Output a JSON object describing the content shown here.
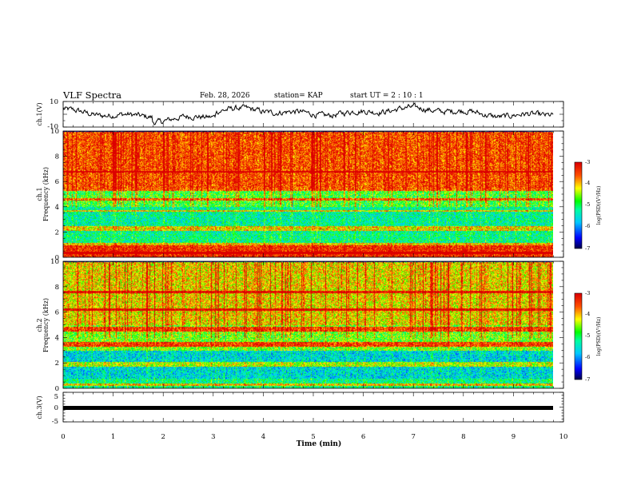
{
  "header": {
    "title": "VLF Spectra",
    "date": "Feb. 28, 2026",
    "station": "station= KAP",
    "start": "start  UT =   2 : 10 : 1"
  },
  "chart_data": [
    {
      "type": "line",
      "name": "ch1-waveform",
      "ylabel": "ch.1(V)",
      "ylim": [
        -10,
        10
      ],
      "y_ticks": [
        "10",
        "-10"
      ],
      "x_range": [
        0,
        10
      ],
      "data_extent": [
        0,
        9.8
      ],
      "description_values": "noisy envelope, mostly between -3 and 5 V"
    },
    {
      "type": "heatmap",
      "name": "ch1-spectrogram",
      "ylabel_line1": "ch.1",
      "ylabel_line2": "Frequency (kHz)",
      "ylim": [
        0,
        10
      ],
      "y_ticks": [
        "0",
        "2",
        "4",
        "6",
        "8",
        "10"
      ],
      "xlim": [
        0,
        10
      ],
      "data_extent": [
        0,
        9.8
      ],
      "colorbar": {
        "label": "log(PSD)(V²/Hz)",
        "range": [
          -7,
          -3
        ],
        "ticks": [
          "-3",
          "-4",
          "-5",
          "-6",
          "-7"
        ]
      },
      "bands_kHz": [
        {
          "from": 0,
          "to": 1.0,
          "level": -3.3
        },
        {
          "from": 1.0,
          "to": 2.0,
          "level": -5.2
        },
        {
          "from": 2.0,
          "to": 4.0,
          "level": -5.3
        },
        {
          "from": 4.0,
          "to": 5.5,
          "level": -4.8
        },
        {
          "from": 5.5,
          "to": 10.0,
          "level": -3.5
        }
      ],
      "lines_kHz": [
        0.4,
        1.05,
        2.2,
        2.4,
        3.7,
        4.6,
        5.4,
        6.8
      ]
    },
    {
      "type": "heatmap",
      "name": "ch2-spectrogram",
      "ylabel_line1": "ch.2",
      "ylabel_line2": "Frequency (kHz)",
      "ylim": [
        0,
        10
      ],
      "y_ticks": [
        "0",
        "2",
        "4",
        "6",
        "8",
        "10"
      ],
      "xlim": [
        0,
        10
      ],
      "data_extent": [
        0,
        9.8
      ],
      "colorbar": {
        "label": "log(PSD)(V²/Hz)",
        "range": [
          -7,
          -3
        ],
        "ticks": [
          "-3",
          "-4",
          "-5",
          "-6",
          "-7"
        ]
      },
      "bands_kHz": [
        {
          "from": 0,
          "to": 0.8,
          "level": -5.2
        },
        {
          "from": 0.8,
          "to": 3.0,
          "level": -5.6
        },
        {
          "from": 3.0,
          "to": 5.0,
          "level": -4.6
        },
        {
          "from": 5.0,
          "to": 10.0,
          "level": -4.1
        }
      ],
      "lines_kHz": [
        0.3,
        1.8,
        2.0,
        3.4,
        3.6,
        4.6,
        4.8,
        6.2,
        7.6
      ]
    },
    {
      "type": "line",
      "name": "ch3-trace",
      "ylabel": "ch.3(V)",
      "ylim": [
        -5,
        5
      ],
      "y_ticks": [
        "5",
        "0",
        "-5"
      ],
      "x_range": [
        0,
        10
      ],
      "data_extent": [
        0,
        9.8
      ],
      "constant_value": 0
    }
  ],
  "x_axis": {
    "label": "Time (min)",
    "ticks": [
      "0",
      "1",
      "2",
      "3",
      "4",
      "5",
      "6",
      "7",
      "8",
      "9",
      "10"
    ]
  }
}
